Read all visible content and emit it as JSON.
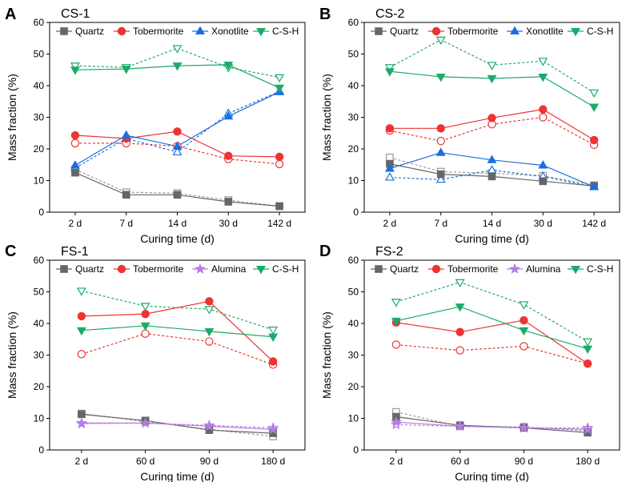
{
  "chart_data": [
    {
      "panel": "A",
      "type": "line",
      "title": "CS-1",
      "xlabel": "Curing time (d)",
      "ylabel": "Mass fraction (%)",
      "ylim": [
        0,
        60
      ],
      "yticks": [
        0,
        10,
        20,
        30,
        40,
        50,
        60
      ],
      "categories": [
        "2 d",
        "7 d",
        "14 d",
        "30 d",
        "142 d"
      ],
      "legend": [
        "Quartz",
        "Tobermorite",
        "Xonotlite",
        "C-S-H"
      ],
      "series": [
        {
          "name": "Quartz",
          "color": "#666666",
          "marker": "square",
          "filled": true,
          "style": "solid",
          "values": [
            12.5,
            5.5,
            5.5,
            3.3,
            1.9
          ]
        },
        {
          "name": "Quartz",
          "color": "#999999",
          "marker": "square",
          "filled": false,
          "style": "dashed",
          "values": [
            13.5,
            6.3,
            6.0,
            3.8,
            1.9
          ]
        },
        {
          "name": "Tobermorite",
          "color": "#ee3333",
          "marker": "circle",
          "filled": true,
          "style": "solid",
          "values": [
            24.3,
            23.3,
            25.5,
            17.8,
            17.5
          ]
        },
        {
          "name": "Tobermorite",
          "color": "#ee3333",
          "marker": "circle",
          "filled": false,
          "style": "dashed",
          "values": [
            21.8,
            21.8,
            20.9,
            16.8,
            15.2
          ]
        },
        {
          "name": "Xonotlite",
          "color": "#1a6fdf",
          "marker": "triangle-up",
          "filled": true,
          "style": "solid",
          "values": [
            14.8,
            24.3,
            20.8,
            30.3,
            38.0
          ]
        },
        {
          "name": "Xonotlite",
          "color": "#1a6fdf",
          "marker": "triangle-up",
          "filled": false,
          "style": "dashed",
          "values": [
            14.0,
            23.3,
            19.0,
            31.2,
            38.2
          ]
        },
        {
          "name": "C-S-H",
          "color": "#1aab6b",
          "marker": "triangle-down",
          "filled": true,
          "style": "solid",
          "values": [
            45.0,
            45.3,
            46.3,
            46.6,
            39.3
          ]
        },
        {
          "name": "C-S-H",
          "color": "#1aab6b",
          "marker": "triangle-down",
          "filled": false,
          "style": "dashed",
          "values": [
            46.3,
            45.8,
            51.8,
            45.8,
            42.6
          ]
        }
      ]
    },
    {
      "panel": "B",
      "type": "line",
      "title": "CS-2",
      "xlabel": "Curing time (d)",
      "ylabel": "Mass fraction (%)",
      "ylim": [
        0,
        60
      ],
      "yticks": [
        0,
        10,
        20,
        30,
        40,
        50,
        60
      ],
      "categories": [
        "2 d",
        "7 d",
        "14 d",
        "30 d",
        "142 d"
      ],
      "legend": [
        "Quartz",
        "Tobermorite",
        "Xonotlite",
        "C-S-H"
      ],
      "series": [
        {
          "name": "Quartz",
          "color": "#666666",
          "marker": "square",
          "filled": true,
          "style": "solid",
          "values": [
            15.3,
            12.0,
            11.3,
            9.8,
            8.3
          ]
        },
        {
          "name": "Quartz",
          "color": "#999999",
          "marker": "square",
          "filled": false,
          "style": "dashed",
          "values": [
            17.3,
            12.8,
            12.3,
            11.5,
            8.5
          ]
        },
        {
          "name": "Tobermorite",
          "color": "#ee3333",
          "marker": "circle",
          "filled": true,
          "style": "solid",
          "values": [
            26.5,
            26.5,
            29.8,
            32.5,
            22.8
          ]
        },
        {
          "name": "Tobermorite",
          "color": "#ee3333",
          "marker": "circle",
          "filled": false,
          "style": "dashed",
          "values": [
            25.8,
            22.5,
            27.8,
            30.0,
            21.3
          ]
        },
        {
          "name": "Xonotlite",
          "color": "#1a6fdf",
          "marker": "triangle-up",
          "filled": true,
          "style": "solid",
          "values": [
            13.8,
            18.8,
            16.5,
            14.8,
            8.0
          ]
        },
        {
          "name": "Xonotlite",
          "color": "#1a6fdf",
          "marker": "triangle-up",
          "filled": false,
          "style": "dashed",
          "values": [
            11.0,
            10.3,
            13.3,
            11.3,
            8.0
          ]
        },
        {
          "name": "C-S-H",
          "color": "#1aab6b",
          "marker": "triangle-down",
          "filled": true,
          "style": "solid",
          "values": [
            44.5,
            42.8,
            42.3,
            42.8,
            33.3
          ]
        },
        {
          "name": "C-S-H",
          "color": "#1aab6b",
          "marker": "triangle-down",
          "filled": false,
          "style": "dashed",
          "values": [
            45.8,
            54.5,
            46.5,
            47.8,
            37.8
          ]
        }
      ]
    },
    {
      "panel": "C",
      "type": "line",
      "title": "FS-1",
      "xlabel": "Curing time (d)",
      "ylabel": "Mass fraction (%)",
      "ylim": [
        0,
        60
      ],
      "yticks": [
        0,
        10,
        20,
        30,
        40,
        50,
        60
      ],
      "categories": [
        "2 d",
        "60 d",
        "90 d",
        "180 d"
      ],
      "legend": [
        "Quartz",
        "Tobermorite",
        "Alumina",
        "C-S-H"
      ],
      "series": [
        {
          "name": "Quartz",
          "color": "#666666",
          "marker": "square",
          "filled": true,
          "style": "solid",
          "values": [
            11.3,
            9.3,
            6.3,
            5.3
          ]
        },
        {
          "name": "Quartz",
          "color": "#999999",
          "marker": "square",
          "filled": false,
          "style": "dashed",
          "values": [
            11.5,
            9.0,
            6.5,
            4.3
          ]
        },
        {
          "name": "Tobermorite",
          "color": "#ee3333",
          "marker": "circle",
          "filled": true,
          "style": "solid",
          "values": [
            42.3,
            43.0,
            47.0,
            28.0
          ]
        },
        {
          "name": "Tobermorite",
          "color": "#ee3333",
          "marker": "circle",
          "filled": false,
          "style": "dashed",
          "values": [
            30.3,
            36.8,
            34.3,
            27.0
          ]
        },
        {
          "name": "Alumina",
          "color": "#b57ce6",
          "marker": "star",
          "filled": true,
          "style": "solid",
          "values": [
            8.5,
            8.5,
            7.5,
            6.5
          ]
        },
        {
          "name": "Alumina",
          "color": "#b57ce6",
          "marker": "star",
          "filled": false,
          "style": "dashed",
          "values": [
            8.3,
            8.5,
            7.8,
            7.0
          ]
        },
        {
          "name": "C-S-H",
          "color": "#1aab6b",
          "marker": "triangle-down",
          "filled": true,
          "style": "solid",
          "values": [
            37.8,
            39.3,
            37.5,
            35.8
          ]
        },
        {
          "name": "C-S-H",
          "color": "#1aab6b",
          "marker": "triangle-down",
          "filled": false,
          "style": "dashed",
          "values": [
            50.3,
            45.5,
            44.5,
            38.0
          ]
        }
      ]
    },
    {
      "panel": "D",
      "type": "line",
      "title": "FS-2",
      "xlabel": "Curing time (d)",
      "ylabel": "Mass fraction (%)",
      "ylim": [
        0,
        60
      ],
      "yticks": [
        0,
        10,
        20,
        30,
        40,
        50,
        60
      ],
      "categories": [
        "2 d",
        "60 d",
        "90 d",
        "180 d"
      ],
      "legend": [
        "Quartz",
        "Tobermorite",
        "Alumina",
        "C-S-H"
      ],
      "series": [
        {
          "name": "Quartz",
          "color": "#666666",
          "marker": "square",
          "filled": true,
          "style": "solid",
          "values": [
            10.5,
            7.8,
            7.0,
            5.5
          ]
        },
        {
          "name": "Quartz",
          "color": "#999999",
          "marker": "square",
          "filled": false,
          "style": "dashed",
          "values": [
            12.0,
            7.5,
            7.3,
            6.0
          ]
        },
        {
          "name": "Tobermorite",
          "color": "#ee3333",
          "marker": "circle",
          "filled": true,
          "style": "solid",
          "values": [
            40.3,
            37.3,
            41.0,
            27.3
          ]
        },
        {
          "name": "Tobermorite",
          "color": "#ee3333",
          "marker": "circle",
          "filled": false,
          "style": "dashed",
          "values": [
            33.3,
            31.5,
            32.8,
            27.3
          ]
        },
        {
          "name": "Alumina",
          "color": "#b57ce6",
          "marker": "star",
          "filled": true,
          "style": "solid",
          "values": [
            8.8,
            7.5,
            7.0,
            6.5
          ]
        },
        {
          "name": "Alumina",
          "color": "#b57ce6",
          "marker": "star",
          "filled": false,
          "style": "dashed",
          "values": [
            8.0,
            7.5,
            7.0,
            7.0
          ]
        },
        {
          "name": "C-S-H",
          "color": "#1aab6b",
          "marker": "triangle-down",
          "filled": true,
          "style": "solid",
          "values": [
            40.8,
            45.3,
            37.8,
            32.0
          ]
        },
        {
          "name": "C-S-H",
          "color": "#1aab6b",
          "marker": "triangle-down",
          "filled": false,
          "style": "dashed",
          "values": [
            46.8,
            53.0,
            46.0,
            34.3
          ]
        }
      ]
    }
  ]
}
